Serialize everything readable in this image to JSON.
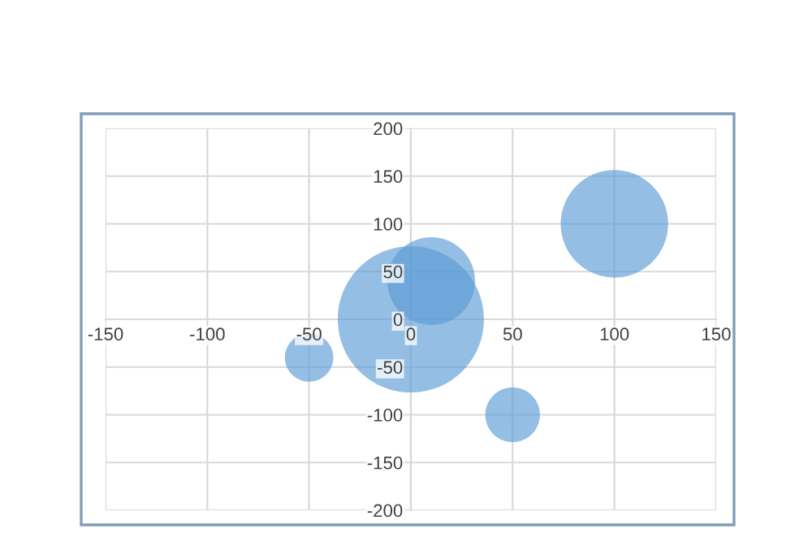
{
  "chart_data": {
    "type": "bubble",
    "x": [
      -50,
      0,
      10,
      50,
      100
    ],
    "series": [
      {
        "color": "#5b9bd5",
        "values": [
          -40,
          0,
          40,
          -100,
          100
        ],
        "sizes": [
          0.11,
          1,
          0.36,
          0.14,
          0.54
        ]
      }
    ],
    "xlim": [
      -150,
      150
    ],
    "xticks": [
      -150,
      -100,
      -50,
      0,
      50,
      100,
      150
    ],
    "ylim": [
      -200,
      200
    ],
    "yticks": [
      -200,
      -150,
      -100,
      -50,
      0,
      50,
      100,
      150,
      200
    ],
    "grid": true,
    "legend": false
  }
}
